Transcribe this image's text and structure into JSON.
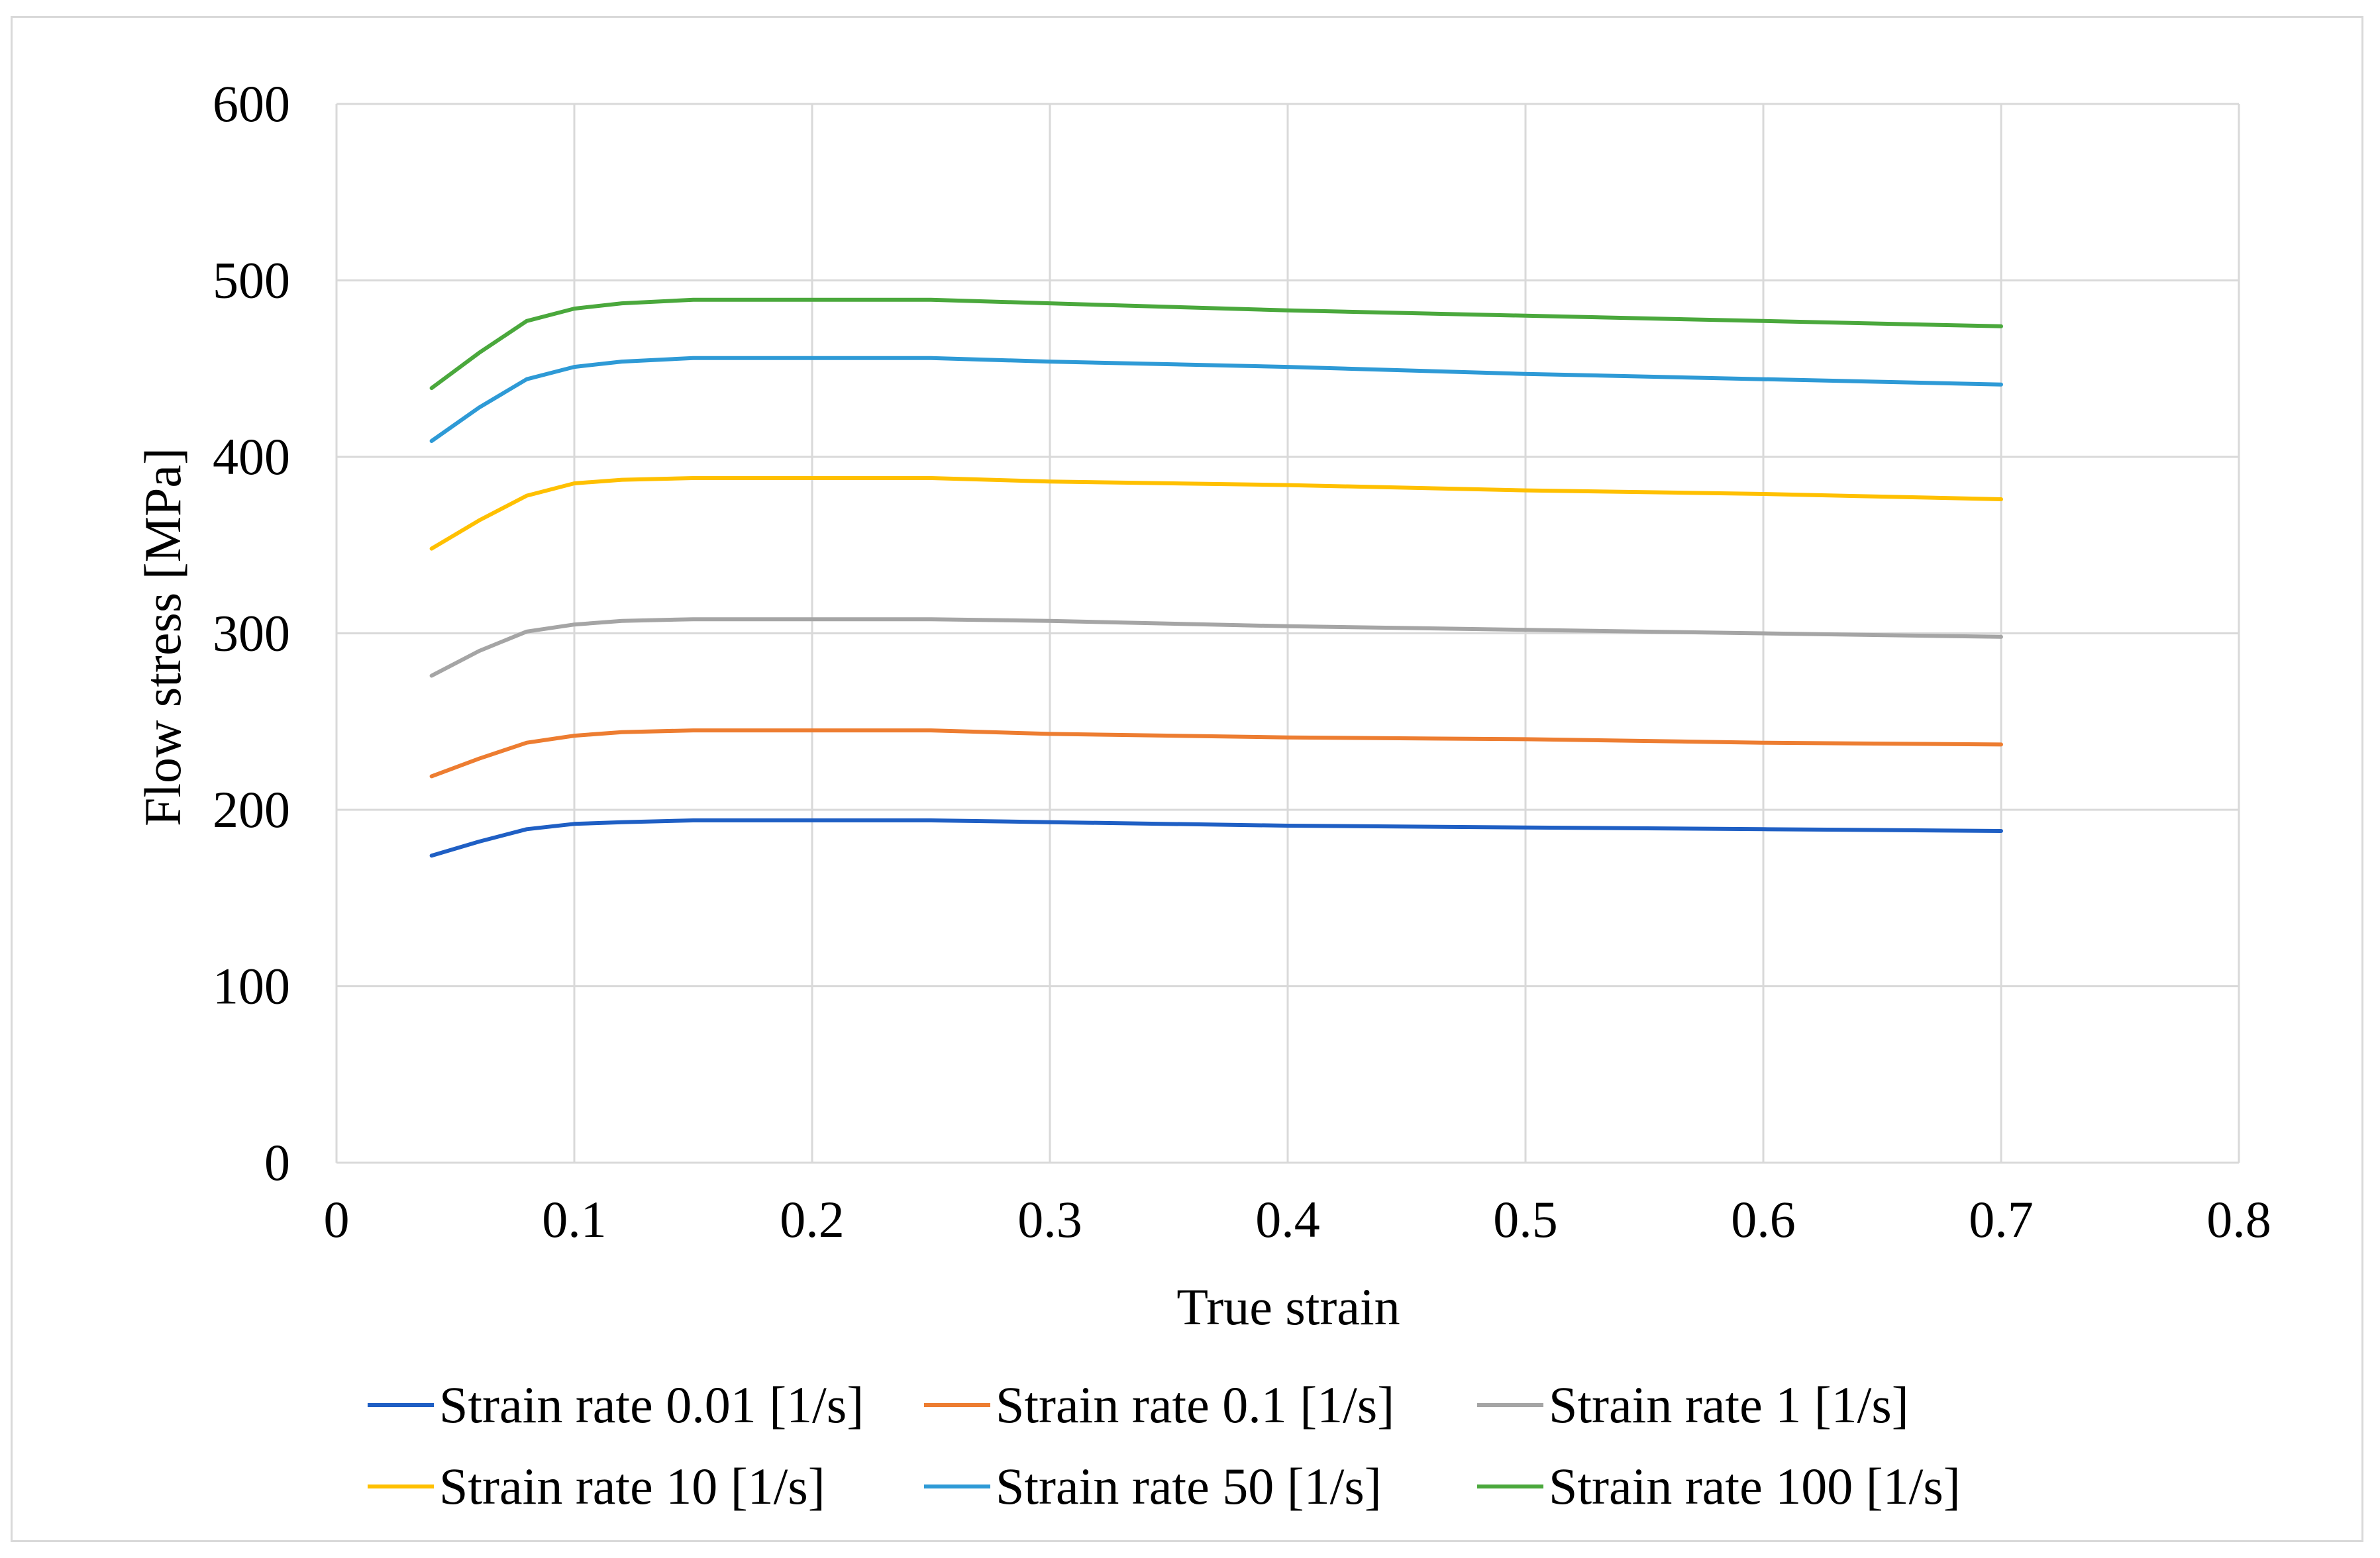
{
  "chart_data": {
    "type": "line",
    "title": "",
    "xlabel": "True strain",
    "ylabel": "Flow stress [MPa]",
    "xlim": [
      0,
      0.8
    ],
    "ylim": [
      0,
      600
    ],
    "xticks": [
      "0",
      "0.1",
      "0.2",
      "0.3",
      "0.4",
      "0.5",
      "0.6",
      "0.7",
      "0.8"
    ],
    "yticks": [
      "0",
      "100",
      "200",
      "300",
      "400",
      "500",
      "600"
    ],
    "grid": true,
    "legend_position": "bottom",
    "x": [
      0.04,
      0.06,
      0.08,
      0.1,
      0.12,
      0.15,
      0.2,
      0.25,
      0.3,
      0.4,
      0.5,
      0.6,
      0.7
    ],
    "series": [
      {
        "name": "Strain rate 0.01 [1/s]",
        "color": "#1f5fc4",
        "values": [
          174,
          182,
          189,
          192,
          193,
          194,
          194,
          194,
          193,
          191,
          190,
          189,
          188
        ]
      },
      {
        "name": "Strain rate 0.1 [1/s]",
        "color": "#ed7d31",
        "values": [
          219,
          229,
          238,
          242,
          244,
          245,
          245,
          245,
          243,
          241,
          240,
          238,
          237
        ]
      },
      {
        "name": "Strain rate 1 [1/s]",
        "color": "#a5a5a5",
        "values": [
          276,
          290,
          301,
          305,
          307,
          308,
          308,
          308,
          307,
          304,
          302,
          300,
          298
        ]
      },
      {
        "name": "Strain rate 10 [1/s]",
        "color": "#ffc000",
        "values": [
          348,
          364,
          378,
          385,
          387,
          388,
          388,
          388,
          386,
          384,
          381,
          379,
          376
        ]
      },
      {
        "name": "Strain rate 50 [1/s]",
        "color": "#2e9ad6",
        "values": [
          409,
          428,
          444,
          451,
          454,
          456,
          456,
          456,
          454,
          451,
          447,
          444,
          441
        ]
      },
      {
        "name": "Strain rate 100 [1/s]",
        "color": "#4aa83c",
        "values": [
          439,
          459,
          477,
          484,
          487,
          489,
          489,
          489,
          487,
          483,
          480,
          477,
          474
        ]
      }
    ]
  }
}
